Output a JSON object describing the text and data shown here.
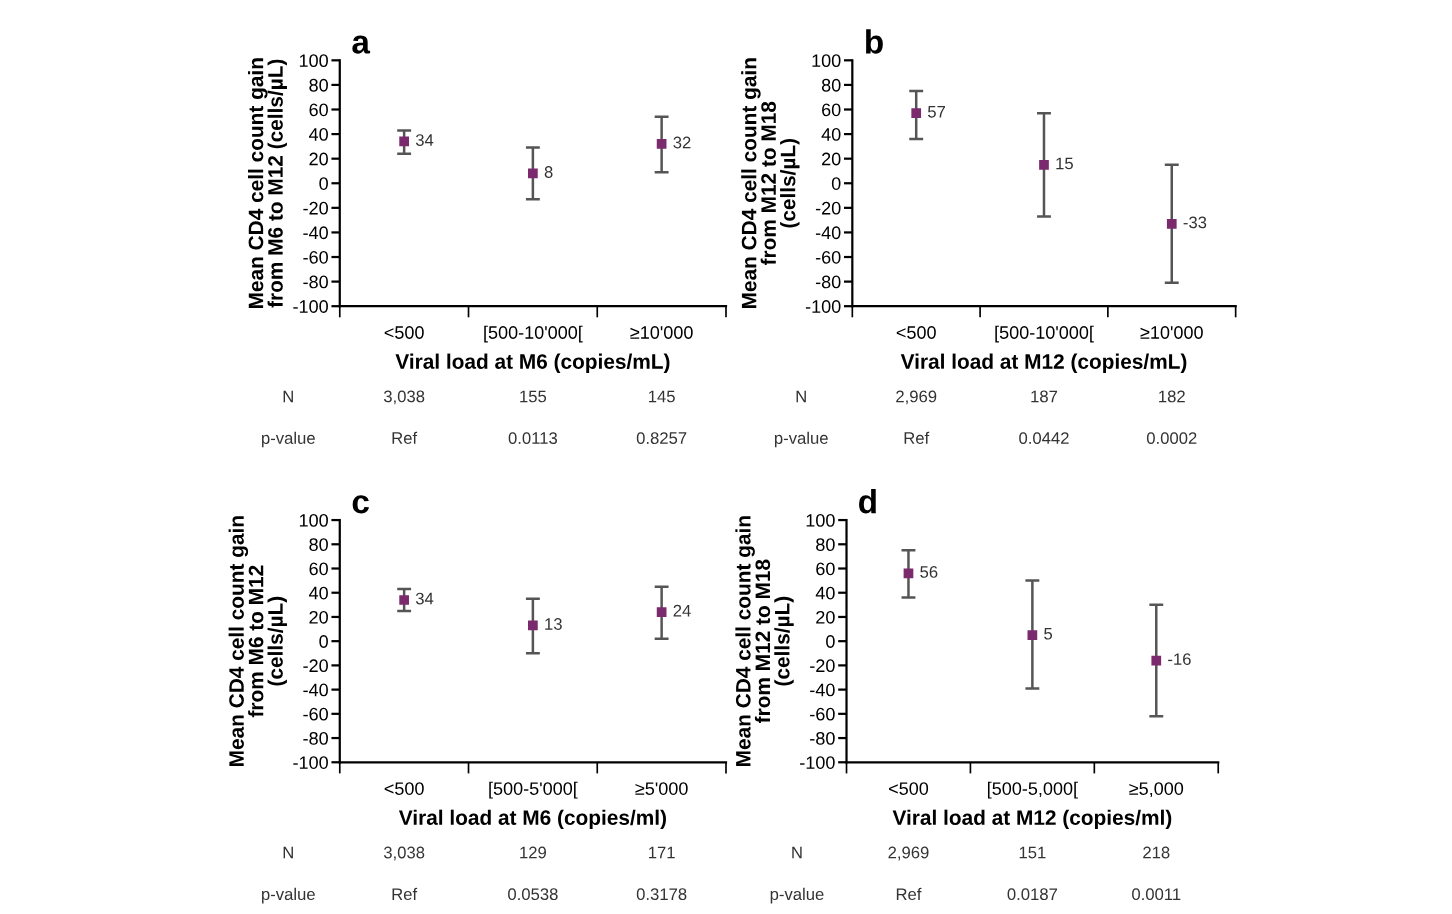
{
  "chart_data": [
    {
      "type": "scatter",
      "title": "a",
      "xlabel": "Viral load at M6 (copies/mL)",
      "ylabel": "Mean CD4 cell count gain\nfrom M6 to M12 (cells/µL)",
      "categories": [
        "<500",
        "[500-10'000[",
        "≥10'000"
      ],
      "values": [
        34,
        8,
        32
      ],
      "errors": [
        [
          24,
          43
        ],
        [
          -13,
          29
        ],
        [
          9,
          54
        ]
      ],
      "color": "#7b2a6e",
      "marker": "square",
      "data_labels": true,
      "ylim": [
        -100,
        100
      ],
      "yticks": [
        -100,
        -80,
        -60,
        -40,
        -20,
        0,
        20,
        40,
        60,
        80,
        100
      ],
      "annotations": [
        "N",
        "3,038",
        "155",
        "145",
        "p-value",
        "Ref",
        "0.0113",
        "0.8257"
      ]
    },
    {
      "type": "scatter",
      "title": "b",
      "xlabel": "Viral load at M12 (copies/mL)",
      "ylabel": "Mean CD4 cell count gain\nfrom M12 to M18\n(cells/µL)",
      "categories": [
        "<500",
        "[500-10'000[",
        "≥10'000"
      ],
      "values": [
        57,
        15,
        -33
      ],
      "errors": [
        [
          36,
          75
        ],
        [
          -27,
          57
        ],
        [
          -81,
          15
        ]
      ],
      "color": "#7b2a6e",
      "marker": "square",
      "data_labels": true,
      "ylim": [
        -100,
        100
      ],
      "yticks": [
        -100,
        -80,
        -60,
        -40,
        -20,
        0,
        20,
        40,
        60,
        80,
        100
      ],
      "annotations": [
        "N",
        "2,969",
        "187",
        "182",
        "p-value",
        "Ref",
        "0.0442",
        "0.0002"
      ]
    },
    {
      "type": "scatter",
      "title": "c",
      "xlabel": "Viral load at M6 (copies/ml)",
      "ylabel": "Mean CD4 cell count gain\nfrom M6 to M12\n(cells/µL)",
      "categories": [
        "<500",
        "[500-5'000[",
        "≥5'000"
      ],
      "values": [
        34,
        13,
        24
      ],
      "errors": [
        [
          25,
          43
        ],
        [
          -10,
          35
        ],
        [
          2,
          45
        ]
      ],
      "color": "#7b2a6e",
      "marker": "square",
      "data_labels": true,
      "ylim": [
        -100,
        100
      ],
      "yticks": [
        -100,
        -80,
        -60,
        -40,
        -20,
        0,
        20,
        40,
        60,
        80,
        100
      ],
      "annotations": [
        "N",
        "3,038",
        "129",
        "171",
        "p-value",
        "Ref",
        "0.0538",
        "0.3178"
      ]
    },
    {
      "type": "scatter",
      "title": "d",
      "xlabel": "Viral load at M12 (copies/ml)",
      "ylabel": "Mean CD4 cell count gain\nfrom M12 to M18\n(cells/µL)",
      "categories": [
        "<500",
        "[500-5,000[",
        "≥5,000"
      ],
      "values": [
        56,
        5,
        -16
      ],
      "errors": [
        [
          36,
          75
        ],
        [
          -39,
          50
        ],
        [
          -62,
          30
        ]
      ],
      "color": "#7b2a6e",
      "marker": "square",
      "data_labels": true,
      "ylim": [
        -100,
        100
      ],
      "yticks": [
        -100,
        -80,
        -60,
        -40,
        -20,
        0,
        20,
        40,
        60,
        80,
        100
      ],
      "annotations": [
        "N",
        "2,969",
        "151",
        "218",
        "p-value",
        "Ref",
        "0.0187",
        "0.0011"
      ]
    }
  ]
}
